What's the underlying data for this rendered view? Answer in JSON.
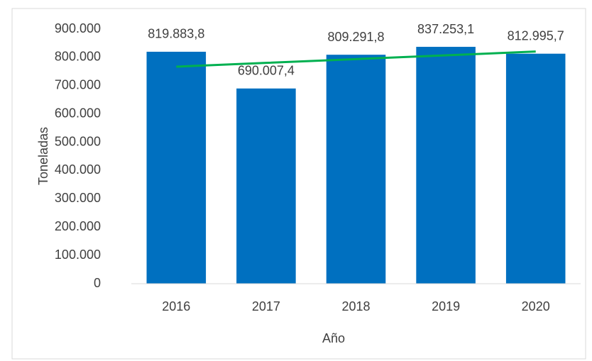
{
  "chart_data": {
    "type": "bar",
    "x_label": "Año",
    "y_label": "Toneladas",
    "categories": [
      "2016",
      "2017",
      "2018",
      "2019",
      "2020"
    ],
    "values": [
      819883.8,
      690007.4,
      809291.8,
      837253.1,
      812995.7
    ],
    "value_labels": [
      "819.883,8",
      "690.007,4",
      "809.291,8",
      "837.253,1",
      "812.995,7"
    ],
    "color": "#0070c0",
    "trendline": {
      "color": "#00b050",
      "values": [
        767192,
        780539,
        793886,
        807233,
        820580
      ]
    },
    "ylim": [
      0,
      900000
    ],
    "yticks": [
      0,
      {
        "value": 100000,
        "label": "100.000"
      },
      {
        "value": 200000,
        "label": "200.000"
      },
      {
        "value": 300000,
        "label": "300.000"
      },
      {
        "value": 400000,
        "label": "400.000"
      },
      {
        "value": 500000,
        "label": "500.000"
      },
      {
        "value": 600000,
        "label": "600.000"
      },
      {
        "value": 700000,
        "label": "700.000"
      },
      {
        "value": 800000,
        "label": "800.000"
      },
      {
        "value": 900000,
        "label": "900.000"
      }
    ],
    "grid": false
  }
}
